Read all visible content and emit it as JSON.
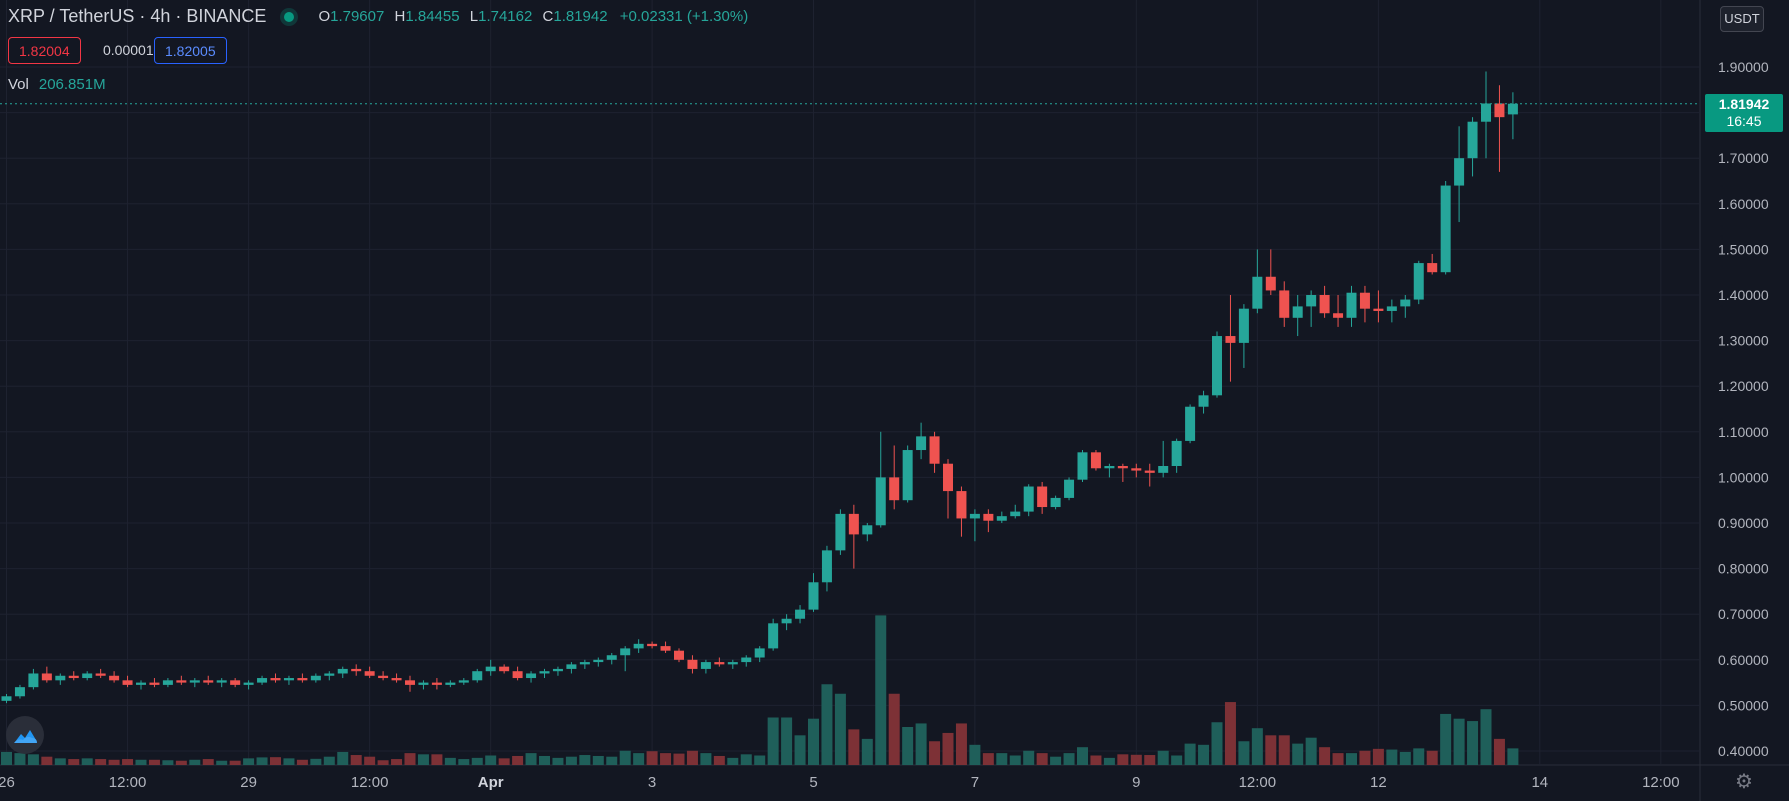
{
  "header": {
    "symbol": "XRP / TetherUS · 4h · BINANCE",
    "ohlc": {
      "o_label": "O",
      "o": "1.79607",
      "h_label": "H",
      "h": "1.84455",
      "l_label": "L",
      "l": "1.74162",
      "c_label": "C",
      "c": "1.81942",
      "change": "+0.02331 (+1.30%)"
    },
    "bid": "1.82004",
    "spread": "0.00001",
    "ask": "1.82005",
    "vol_label": "Vol",
    "vol_value": "206.851M"
  },
  "currency_button": "USDT",
  "last_price": {
    "price": "1.81942",
    "countdown": "16:45"
  },
  "icons": {
    "logo": "tradingview-cloud-icon",
    "settings": "gear-icon",
    "status": "market-open-dot-icon"
  },
  "colors": {
    "up": "#26a69a",
    "down": "#ef5350",
    "vol_up": "#1f5f5a",
    "vol_down": "#7d3136",
    "background": "#131722",
    "grid": "#1e2230"
  },
  "chart_data": {
    "type": "candlestick",
    "title": "XRP / TetherUS",
    "interval": "4h",
    "exchange": "BINANCE",
    "ylim": [
      0.38,
      2.0
    ],
    "y_ticks": [
      "1.90000",
      "1.80000",
      "1.70000",
      "1.60000",
      "1.50000",
      "1.40000",
      "1.30000",
      "1.20000",
      "1.10000",
      "1.00000",
      "0.90000",
      "0.80000",
      "0.70000",
      "0.60000",
      "0.50000",
      "0.40000"
    ],
    "x_ticks": [
      {
        "label": "26",
        "bar": 0
      },
      {
        "label": "12:00",
        "bar": 9
      },
      {
        "label": "29",
        "bar": 18
      },
      {
        "label": "12:00",
        "bar": 27
      },
      {
        "label": "Apr",
        "bar": 36
      },
      {
        "label": "3",
        "bar": 48
      },
      {
        "label": "5",
        "bar": 60
      },
      {
        "label": "7",
        "bar": 72
      },
      {
        "label": "9",
        "bar": 84
      },
      {
        "label": "12:00",
        "bar": 93
      },
      {
        "label": "12",
        "bar": 102
      },
      {
        "label": "14",
        "bar": 114
      },
      {
        "label": "12:00",
        "bar": 123
      }
    ],
    "volume_max": 800,
    "candles": [
      [
        0.51,
        0.525,
        0.505,
        0.52,
        55
      ],
      [
        0.52,
        0.545,
        0.515,
        0.54,
        50
      ],
      [
        0.54,
        0.58,
        0.535,
        0.57,
        45
      ],
      [
        0.57,
        0.585,
        0.55,
        0.555,
        35
      ],
      [
        0.555,
        0.57,
        0.545,
        0.565,
        28
      ],
      [
        0.565,
        0.575,
        0.555,
        0.56,
        25
      ],
      [
        0.56,
        0.575,
        0.555,
        0.57,
        28
      ],
      [
        0.57,
        0.58,
        0.56,
        0.565,
        25
      ],
      [
        0.565,
        0.575,
        0.55,
        0.555,
        22
      ],
      [
        0.555,
        0.565,
        0.54,
        0.545,
        25
      ],
      [
        0.545,
        0.555,
        0.535,
        0.55,
        22
      ],
      [
        0.55,
        0.56,
        0.54,
        0.545,
        22
      ],
      [
        0.545,
        0.56,
        0.54,
        0.555,
        20
      ],
      [
        0.555,
        0.565,
        0.545,
        0.55,
        18
      ],
      [
        0.55,
        0.56,
        0.54,
        0.555,
        22
      ],
      [
        0.555,
        0.565,
        0.545,
        0.55,
        25
      ],
      [
        0.55,
        0.56,
        0.54,
        0.555,
        18
      ],
      [
        0.555,
        0.56,
        0.54,
        0.545,
        18
      ],
      [
        0.545,
        0.555,
        0.535,
        0.55,
        28
      ],
      [
        0.55,
        0.565,
        0.545,
        0.56,
        32
      ],
      [
        0.56,
        0.57,
        0.55,
        0.555,
        33
      ],
      [
        0.555,
        0.565,
        0.545,
        0.56,
        28
      ],
      [
        0.56,
        0.57,
        0.55,
        0.555,
        22
      ],
      [
        0.555,
        0.57,
        0.55,
        0.565,
        26
      ],
      [
        0.565,
        0.575,
        0.555,
        0.57,
        35
      ],
      [
        0.57,
        0.585,
        0.56,
        0.58,
        55
      ],
      [
        0.58,
        0.59,
        0.565,
        0.575,
        42
      ],
      [
        0.575,
        0.585,
        0.56,
        0.565,
        35
      ],
      [
        0.565,
        0.575,
        0.555,
        0.56,
        20
      ],
      [
        0.56,
        0.57,
        0.55,
        0.555,
        25
      ],
      [
        0.555,
        0.565,
        0.53,
        0.545,
        50
      ],
      [
        0.545,
        0.555,
        0.535,
        0.55,
        45
      ],
      [
        0.55,
        0.56,
        0.535,
        0.545,
        45
      ],
      [
        0.545,
        0.555,
        0.54,
        0.55,
        30
      ],
      [
        0.55,
        0.56,
        0.545,
        0.555,
        25
      ],
      [
        0.555,
        0.58,
        0.55,
        0.575,
        30
      ],
      [
        0.575,
        0.6,
        0.565,
        0.585,
        40
      ],
      [
        0.585,
        0.59,
        0.57,
        0.575,
        28
      ],
      [
        0.575,
        0.585,
        0.555,
        0.56,
        38
      ],
      [
        0.56,
        0.575,
        0.55,
        0.57,
        50
      ],
      [
        0.57,
        0.58,
        0.56,
        0.575,
        38
      ],
      [
        0.575,
        0.585,
        0.565,
        0.58,
        30
      ],
      [
        0.58,
        0.595,
        0.57,
        0.59,
        35
      ],
      [
        0.59,
        0.6,
        0.58,
        0.595,
        42
      ],
      [
        0.595,
        0.605,
        0.585,
        0.6,
        38
      ],
      [
        0.6,
        0.615,
        0.59,
        0.61,
        35
      ],
      [
        0.61,
        0.63,
        0.575,
        0.625,
        60
      ],
      [
        0.625,
        0.645,
        0.615,
        0.635,
        50
      ],
      [
        0.635,
        0.64,
        0.625,
        0.63,
        58
      ],
      [
        0.63,
        0.64,
        0.615,
        0.62,
        50
      ],
      [
        0.62,
        0.625,
        0.595,
        0.6,
        48
      ],
      [
        0.6,
        0.61,
        0.57,
        0.58,
        60
      ],
      [
        0.58,
        0.6,
        0.57,
        0.595,
        50
      ],
      [
        0.595,
        0.605,
        0.585,
        0.59,
        38
      ],
      [
        0.59,
        0.6,
        0.58,
        0.595,
        30
      ],
      [
        0.595,
        0.61,
        0.585,
        0.605,
        45
      ],
      [
        0.605,
        0.63,
        0.595,
        0.625,
        40
      ],
      [
        0.625,
        0.69,
        0.62,
        0.68,
        200
      ],
      [
        0.68,
        0.7,
        0.665,
        0.69,
        200
      ],
      [
        0.69,
        0.72,
        0.68,
        0.71,
        125
      ],
      [
        0.71,
        0.79,
        0.705,
        0.77,
        195
      ],
      [
        0.77,
        0.85,
        0.75,
        0.84,
        340
      ],
      [
        0.84,
        0.93,
        0.83,
        0.92,
        300
      ],
      [
        0.92,
        0.94,
        0.8,
        0.875,
        150
      ],
      [
        0.875,
        0.9,
        0.86,
        0.895,
        110
      ],
      [
        0.895,
        1.1,
        0.89,
        1.0,
        630
      ],
      [
        1.0,
        1.07,
        0.93,
        0.95,
        300
      ],
      [
        0.95,
        1.07,
        0.945,
        1.06,
        160
      ],
      [
        1.06,
        1.12,
        1.04,
        1.09,
        175
      ],
      [
        1.09,
        1.1,
        1.01,
        1.03,
        100
      ],
      [
        1.03,
        1.04,
        0.91,
        0.97,
        135
      ],
      [
        0.97,
        0.98,
        0.87,
        0.91,
        175
      ],
      [
        0.91,
        0.93,
        0.86,
        0.92,
        85
      ],
      [
        0.92,
        0.93,
        0.88,
        0.905,
        50
      ],
      [
        0.905,
        0.925,
        0.9,
        0.915,
        50
      ],
      [
        0.915,
        0.94,
        0.91,
        0.925,
        40
      ],
      [
        0.925,
        0.985,
        0.915,
        0.98,
        60
      ],
      [
        0.98,
        0.99,
        0.92,
        0.935,
        50
      ],
      [
        0.935,
        0.96,
        0.93,
        0.955,
        35
      ],
      [
        0.955,
        1.0,
        0.95,
        0.995,
        50
      ],
      [
        0.995,
        1.06,
        0.99,
        1.055,
        75
      ],
      [
        1.055,
        1.06,
        1.015,
        1.02,
        40
      ],
      [
        1.02,
        1.03,
        1.0,
        1.025,
        30
      ],
      [
        1.025,
        1.03,
        0.99,
        1.02,
        45
      ],
      [
        1.02,
        1.03,
        1.0,
        1.015,
        43
      ],
      [
        1.015,
        1.03,
        0.98,
        1.01,
        42
      ],
      [
        1.01,
        1.08,
        1.0,
        1.025,
        60
      ],
      [
        1.025,
        1.085,
        1.01,
        1.08,
        40
      ],
      [
        1.08,
        1.16,
        1.075,
        1.155,
        90
      ],
      [
        1.155,
        1.19,
        1.14,
        1.18,
        85
      ],
      [
        1.18,
        1.32,
        1.175,
        1.31,
        180
      ],
      [
        1.31,
        1.4,
        1.21,
        1.295,
        265
      ],
      [
        1.295,
        1.38,
        1.24,
        1.37,
        100
      ],
      [
        1.37,
        1.5,
        1.36,
        1.44,
        155
      ],
      [
        1.44,
        1.5,
        1.4,
        1.41,
        125
      ],
      [
        1.41,
        1.43,
        1.33,
        1.35,
        125
      ],
      [
        1.35,
        1.4,
        1.31,
        1.375,
        90
      ],
      [
        1.375,
        1.41,
        1.33,
        1.4,
        115
      ],
      [
        1.4,
        1.42,
        1.35,
        1.36,
        75
      ],
      [
        1.36,
        1.4,
        1.33,
        1.35,
        50
      ],
      [
        1.35,
        1.42,
        1.33,
        1.405,
        50
      ],
      [
        1.405,
        1.42,
        1.34,
        1.37,
        60
      ],
      [
        1.37,
        1.41,
        1.34,
        1.365,
        68
      ],
      [
        1.365,
        1.39,
        1.34,
        1.375,
        65
      ],
      [
        1.375,
        1.4,
        1.35,
        1.39,
        55
      ],
      [
        1.39,
        1.475,
        1.38,
        1.47,
        70
      ],
      [
        1.47,
        1.49,
        1.445,
        1.45,
        60
      ],
      [
        1.45,
        1.65,
        1.445,
        1.64,
        215
      ],
      [
        1.64,
        1.77,
        1.56,
        1.7,
        195
      ],
      [
        1.7,
        1.79,
        1.66,
        1.78,
        185
      ],
      [
        1.78,
        1.89,
        1.7,
        1.82,
        235
      ],
      [
        1.82,
        1.86,
        1.67,
        1.79,
        110
      ],
      [
        1.79607,
        1.84455,
        1.74162,
        1.81942,
        70
      ]
    ]
  }
}
